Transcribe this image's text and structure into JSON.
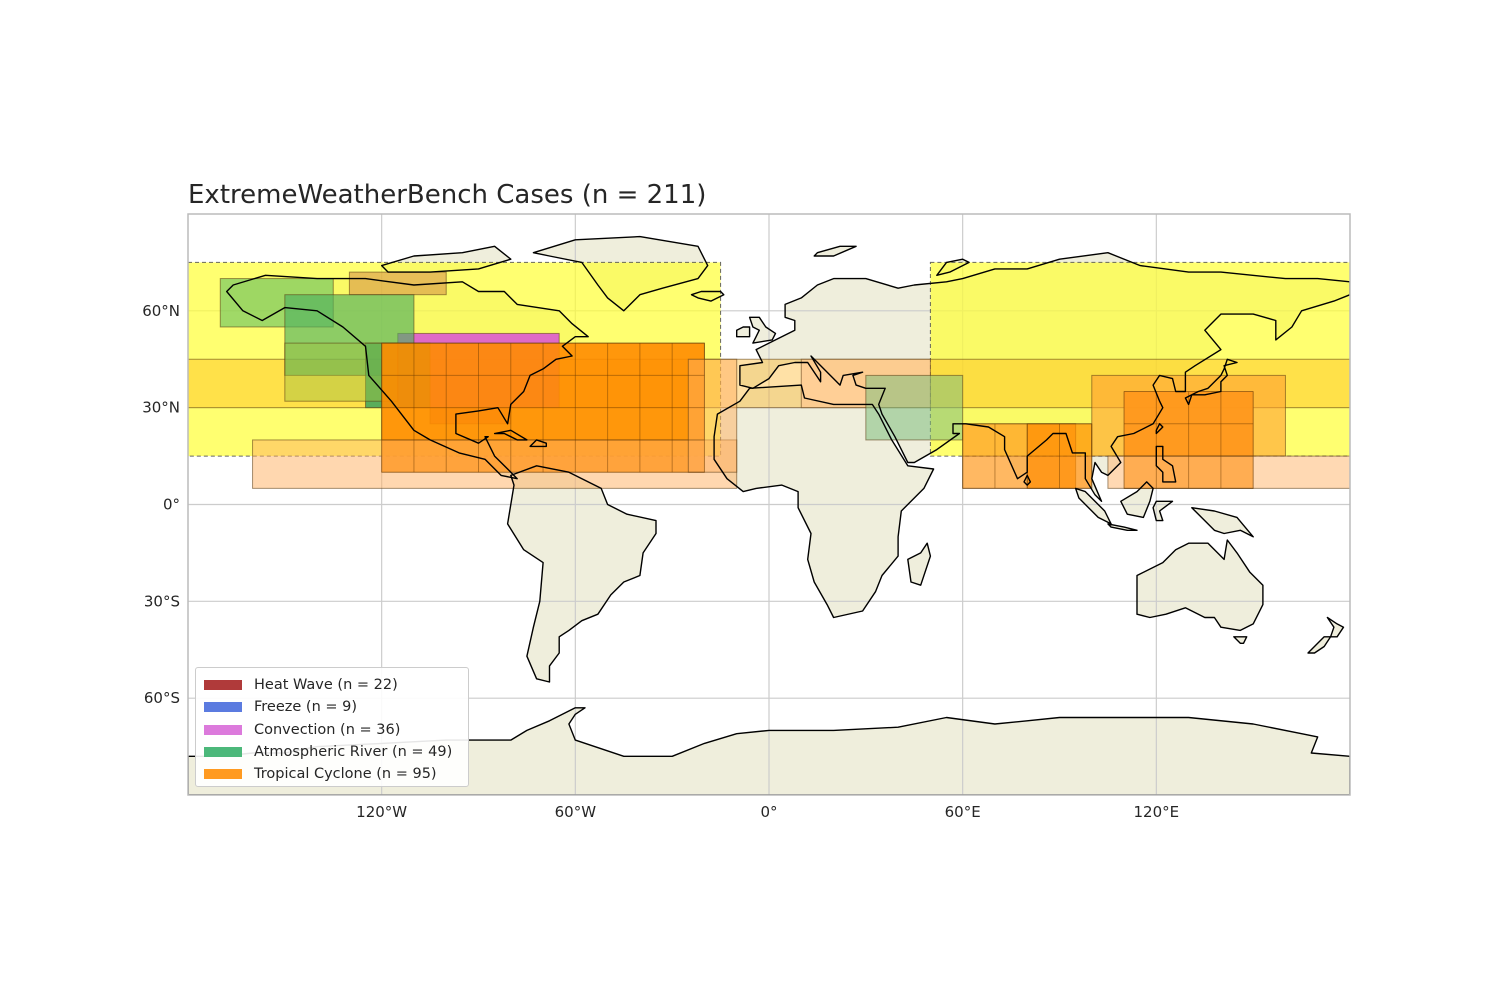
{
  "title": "ExtremeWeatherBench Cases (n = 211)",
  "map": {
    "projection": "PlateCarree",
    "extent_lon": [
      -180,
      180
    ],
    "extent_lat": [
      -90,
      90
    ],
    "grid": true,
    "ocean_color": "#ffffff",
    "land_color": "#efeedc",
    "coastline_color": "#000000",
    "xticks": [
      {
        "value": -120,
        "label": "120°W"
      },
      {
        "value": -60,
        "label": "60°W"
      },
      {
        "value": 0,
        "label": "0°"
      },
      {
        "value": 60,
        "label": "60°E"
      },
      {
        "value": 120,
        "label": "120°E"
      }
    ],
    "yticks": [
      {
        "value": 60,
        "label": "60°N"
      },
      {
        "value": 30,
        "label": "30°N"
      },
      {
        "value": 0,
        "label": "0°"
      },
      {
        "value": -30,
        "label": "30°S"
      },
      {
        "value": -60,
        "label": "60°S"
      }
    ]
  },
  "legend": {
    "placement": "lower-left",
    "items": [
      {
        "label": "Heat Wave (n = 22)",
        "color": "#b03a3a"
      },
      {
        "label": "Freeze (n = 9)",
        "color": "#5b7be0"
      },
      {
        "label": "Convection (n = 36)",
        "color": "#dc7adc"
      },
      {
        "label": "Atmospheric River (n = 49)",
        "color": "#4cb87a"
      },
      {
        "label": "Tropical Cyclone (n = 95)",
        "color": "#ff9a20"
      }
    ]
  },
  "regions": [
    {
      "category": "Heat Wave",
      "lon": [
        -180,
        -15
      ],
      "lat": [
        15,
        75
      ],
      "color": "#ffff33",
      "alpha": 0.7,
      "dashed": true
    },
    {
      "category": "Heat Wave",
      "lon": [
        50,
        180
      ],
      "lat": [
        15,
        75
      ],
      "color": "#ffff33",
      "alpha": 0.7,
      "dashed": true
    },
    {
      "category": "Heat Wave",
      "lon": [
        -180,
        180
      ],
      "lat": [
        30,
        45
      ],
      "color": "#ffaa00",
      "alpha": 0.35
    },
    {
      "category": "Heat Wave",
      "lon": [
        -105,
        -80
      ],
      "lat": [
        25,
        40
      ],
      "color": "#e05050",
      "alpha": 0.6
    },
    {
      "category": "Heat Wave",
      "lon": [
        10,
        50
      ],
      "lat": [
        30,
        45
      ],
      "color": "#ffc890",
      "alpha": 0.7
    },
    {
      "category": "Freeze",
      "lon": [
        -130,
        -100
      ],
      "lat": [
        65,
        72
      ],
      "color": "#d08040",
      "alpha": 0.5
    },
    {
      "category": "Convection",
      "lon": [
        -115,
        -65
      ],
      "lat": [
        30,
        53
      ],
      "color": "#dc5ad0",
      "alpha": 0.9
    },
    {
      "category": "Atmospheric River",
      "lon": [
        -170,
        -135
      ],
      "lat": [
        55,
        70
      ],
      "color": "#60c060",
      "alpha": 0.6
    },
    {
      "category": "Atmospheric River",
      "lon": [
        -150,
        -110
      ],
      "lat": [
        40,
        65
      ],
      "color": "#50b060",
      "alpha": 0.65
    },
    {
      "category": "Atmospheric River",
      "lon": [
        -125,
        -105
      ],
      "lat": [
        30,
        50
      ],
      "color": "#30a060",
      "alpha": 0.8
    },
    {
      "category": "Atmospheric River",
      "lon": [
        -150,
        -115
      ],
      "lat": [
        32,
        50
      ],
      "color": "#a0c040",
      "alpha": 0.45
    },
    {
      "category": "Atmospheric River",
      "lon": [
        30,
        60
      ],
      "lat": [
        20,
        40
      ],
      "color": "#80c080",
      "alpha": 0.55
    },
    {
      "category": "Tropical Cyclone",
      "lon": [
        -120,
        -20
      ],
      "lat": [
        10,
        50
      ],
      "color": "#ff8c00",
      "alpha": 0.9
    },
    {
      "category": "Tropical Cyclone",
      "lon": [
        -160,
        -10
      ],
      "lat": [
        5,
        20
      ],
      "color": "#ffb060",
      "alpha": 0.5
    },
    {
      "category": "Tropical Cyclone",
      "lon": [
        -25,
        -10
      ],
      "lat": [
        10,
        45
      ],
      "color": "#ffb060",
      "alpha": 0.5
    },
    {
      "category": "Tropical Cyclone",
      "lon": [
        60,
        95
      ],
      "lat": [
        5,
        25
      ],
      "color": "#ff9a20",
      "alpha": 0.7
    },
    {
      "category": "Tropical Cyclone",
      "lon": [
        80,
        100
      ],
      "lat": [
        5,
        25
      ],
      "color": "#ff8c00",
      "alpha": 0.7
    },
    {
      "category": "Tropical Cyclone",
      "lon": [
        110,
        150
      ],
      "lat": [
        5,
        35
      ],
      "color": "#ff8c00",
      "alpha": 0.95
    },
    {
      "category": "Tropical Cyclone",
      "lon": [
        100,
        160
      ],
      "lat": [
        15,
        40
      ],
      "color": "#ffa030",
      "alpha": 0.6
    },
    {
      "category": "Tropical Cyclone",
      "lon": [
        105,
        180
      ],
      "lat": [
        5,
        15
      ],
      "color": "#ffc080",
      "alpha": 0.6
    }
  ],
  "tc_grid": [
    {
      "lon": [
        -120,
        -20
      ],
      "lat": [
        10,
        50
      ],
      "step": 10
    },
    {
      "lon": [
        110,
        150
      ],
      "lat": [
        5,
        35
      ],
      "step": 10
    },
    {
      "lon": [
        60,
        100
      ],
      "lat": [
        5,
        25
      ],
      "step": 10
    }
  ]
}
